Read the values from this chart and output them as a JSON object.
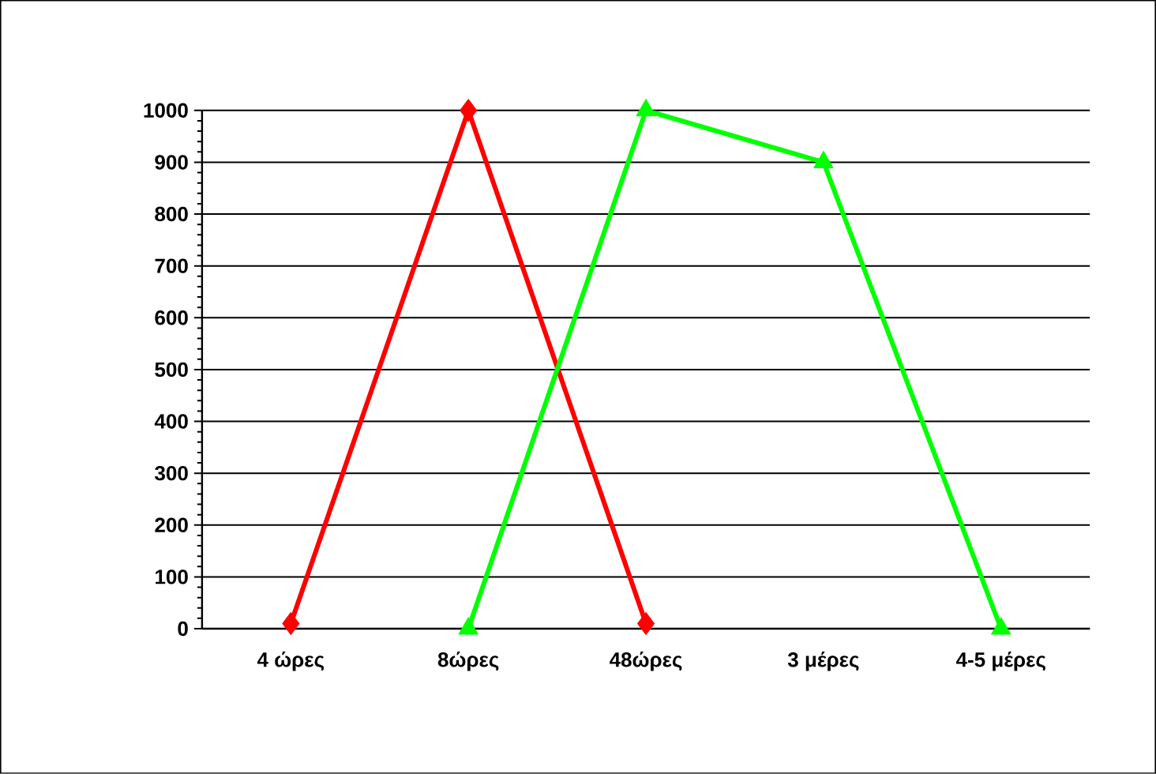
{
  "chart_data": {
    "type": "line",
    "categories": [
      "4 ώρες",
      "8ώρες",
      "48ώρες",
      "3 μέρες",
      "4-5 μέρες"
    ],
    "series": [
      {
        "color": "#ff0000",
        "marker": "diamond",
        "values": [
          10,
          1000,
          10,
          null,
          null
        ]
      },
      {
        "color": "#00ff00",
        "marker": "triangle",
        "values": [
          null,
          0,
          1000,
          900,
          0
        ]
      }
    ],
    "ylim": [
      0,
      1000
    ],
    "yticks": [
      0,
      100,
      200,
      300,
      400,
      500,
      600,
      700,
      800,
      900,
      1000
    ],
    "grid": "y"
  }
}
